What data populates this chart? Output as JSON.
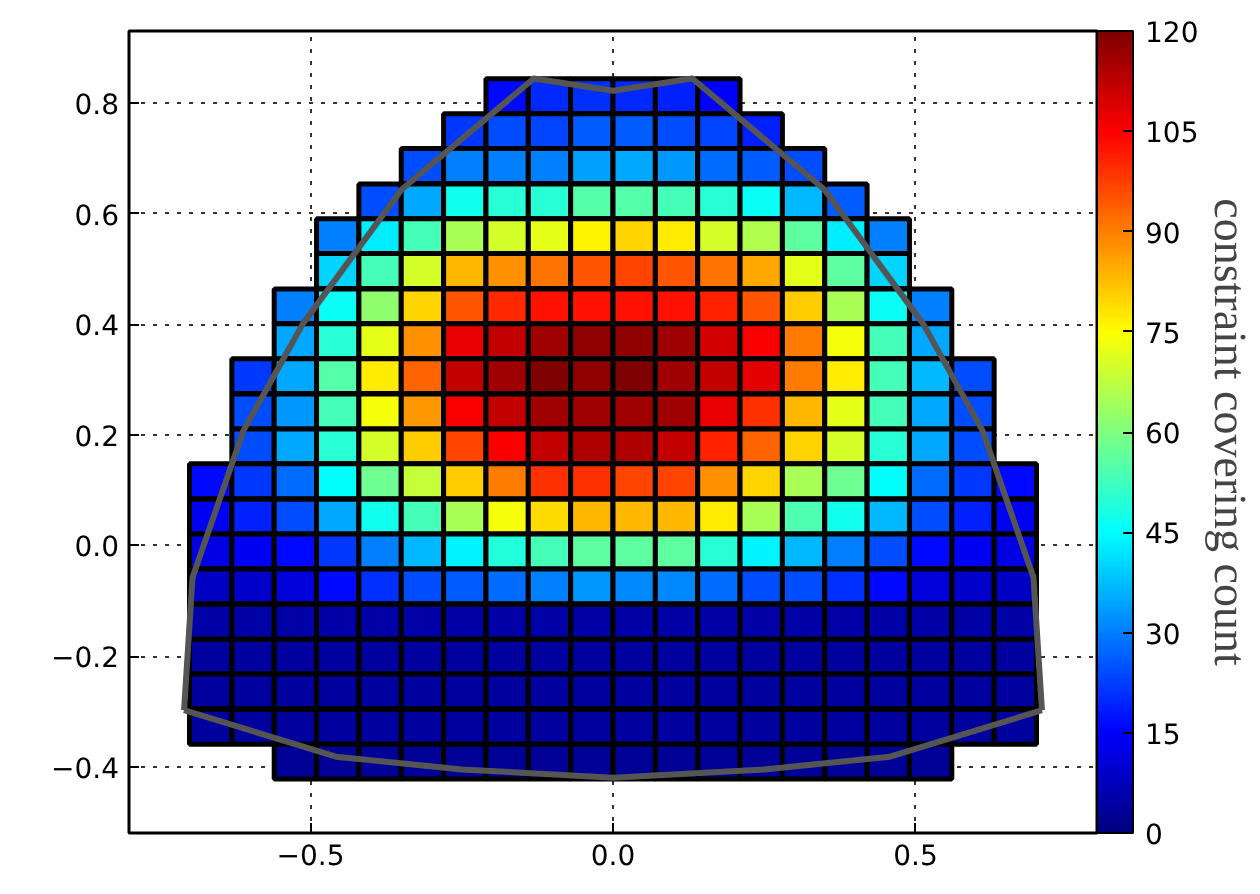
{
  "chart_data": {
    "type": "heatmap",
    "clabel": "constraint covering count",
    "x": [
      -0.665,
      -0.595,
      -0.525,
      -0.455,
      -0.385,
      -0.315,
      -0.245,
      -0.175,
      -0.105,
      -0.035,
      0.035,
      0.105,
      0.175,
      0.245,
      0.315,
      0.385,
      0.455,
      0.525,
      0.595,
      0.665
    ],
    "y": [
      0.812,
      0.749,
      0.686,
      0.622,
      0.559,
      0.496,
      0.432,
      0.369,
      0.306,
      0.242,
      0.179,
      0.116,
      0.052,
      -0.011,
      -0.074,
      -0.138,
      -0.201,
      -0.264,
      -0.328,
      -0.391
    ],
    "cells": [
      [
        null,
        null,
        null,
        null,
        null,
        null,
        null,
        16,
        20,
        21,
        20,
        19,
        15,
        null,
        null,
        null,
        null,
        null,
        null,
        null
      ],
      [
        null,
        null,
        null,
        null,
        null,
        null,
        22,
        24,
        23,
        26,
        26,
        24,
        23,
        19,
        null,
        null,
        null,
        null,
        null,
        null
      ],
      [
        null,
        null,
        null,
        null,
        null,
        24,
        30,
        30,
        30,
        34,
        35,
        33,
        28,
        26,
        24,
        null,
        null,
        null,
        null,
        null
      ],
      [
        null,
        null,
        null,
        null,
        24,
        35,
        47,
        50,
        50,
        55,
        55,
        53,
        50,
        46,
        37,
        26,
        null,
        null,
        null,
        null
      ],
      [
        null,
        null,
        null,
        30,
        43,
        53,
        65,
        70,
        72,
        76,
        80,
        77,
        70,
        66,
        56,
        43,
        30,
        null,
        null,
        null
      ],
      [
        null,
        null,
        null,
        40,
        53,
        70,
        83,
        88,
        91,
        95,
        97,
        95,
        91,
        85,
        72,
        56,
        40,
        null,
        null,
        null
      ],
      [
        null,
        null,
        30,
        46,
        62,
        80,
        95,
        100,
        103,
        103,
        103,
        103,
        101,
        95,
        81,
        65,
        46,
        30,
        null,
        null
      ],
      [
        null,
        null,
        35,
        50,
        72,
        88,
        107,
        112,
        116,
        118,
        118,
        116,
        110,
        105,
        90,
        74,
        53,
        35,
        null,
        null
      ],
      [
        null,
        22,
        35,
        55,
        77,
        93,
        112,
        116,
        120,
        118,
        120,
        116,
        112,
        108,
        90,
        77,
        53,
        37,
        24,
        null
      ],
      [
        null,
        24,
        33,
        53,
        74,
        87,
        105,
        112,
        116,
        116,
        116,
        116,
        107,
        99,
        83,
        72,
        53,
        35,
        24,
        null
      ],
      [
        null,
        24,
        35,
        50,
        70,
        81,
        97,
        105,
        112,
        114,
        114,
        112,
        101,
        93,
        80,
        70,
        50,
        35,
        24,
        null
      ],
      [
        16,
        22,
        28,
        45,
        58,
        68,
        81,
        90,
        99,
        99,
        97,
        97,
        88,
        80,
        65,
        58,
        45,
        28,
        22,
        16
      ],
      [
        14,
        19,
        24,
        35,
        47,
        53,
        65,
        74,
        79,
        83,
        83,
        83,
        77,
        65,
        54,
        47,
        37,
        24,
        19,
        14
      ],
      [
        12,
        14,
        16,
        22,
        30,
        37,
        44,
        49,
        53,
        56,
        56,
        56,
        50,
        44,
        37,
        30,
        24,
        16,
        14,
        12
      ],
      [
        8,
        9,
        11,
        16,
        21,
        24,
        26,
        28,
        30,
        33,
        31,
        31,
        28,
        24,
        24,
        21,
        16,
        11,
        9,
        8
      ],
      [
        5,
        5,
        5,
        5,
        5,
        5,
        5,
        5,
        5,
        5,
        5,
        5,
        5,
        5,
        5,
        5,
        5,
        5,
        5,
        5
      ],
      [
        4,
        4,
        4,
        4,
        4,
        4,
        4,
        4,
        4,
        4,
        4,
        4,
        4,
        4,
        4,
        4,
        4,
        4,
        4,
        4
      ],
      [
        4,
        4,
        4,
        4,
        4,
        4,
        4,
        4,
        4,
        4,
        4,
        4,
        4,
        4,
        4,
        4,
        4,
        4,
        4,
        4
      ],
      [
        4,
        4,
        4,
        4,
        4,
        4,
        4,
        4,
        4,
        4,
        4,
        4,
        4,
        4,
        4,
        4,
        4,
        4,
        4,
        4
      ],
      [
        null,
        null,
        3,
        3,
        3,
        3,
        3,
        3,
        3,
        3,
        3,
        3,
        3,
        3,
        3,
        3,
        3,
        3,
        null,
        null
      ]
    ],
    "clim": [
      0,
      120
    ],
    "cticks": [
      0,
      15,
      30,
      45,
      60,
      75,
      90,
      105,
      120
    ],
    "series": [
      {
        "type": "line",
        "color": "#555555",
        "x": [
          -0.709,
          -0.695,
          -0.611,
          -0.513,
          -0.349,
          -0.131,
          0,
          0.131,
          0.349,
          0.513,
          0.611,
          0.695,
          0.709
        ],
        "values": [
          -0.298,
          -0.058,
          0.207,
          0.4,
          0.644,
          0.844,
          0.822,
          0.844,
          0.644,
          0.4,
          0.207,
          -0.058,
          -0.298
        ]
      },
      {
        "type": "line",
        "color": "#555555",
        "x": [
          -0.709,
          -0.458,
          -0.25,
          0,
          0.25,
          0.458,
          0.709
        ],
        "values": [
          -0.298,
          -0.382,
          -0.405,
          -0.42,
          -0.405,
          -0.382,
          -0.298
        ]
      }
    ],
    "xlim": [
      -0.8,
      0.8
    ],
    "ylim": [
      -0.52,
      0.93
    ],
    "xticks": [
      {
        "value": -0.5,
        "label": "−0.5"
      },
      {
        "value": 0,
        "label": "0.0"
      },
      {
        "value": 0.5,
        "label": "0.5"
      }
    ],
    "yticks": [
      {
        "value": -0.4,
        "label": "−0.4"
      },
      {
        "value": -0.2,
        "label": "−0.2"
      },
      {
        "value": 0,
        "label": "0.0"
      },
      {
        "value": 0.2,
        "label": "0.2"
      },
      {
        "value": 0.4,
        "label": "0.4"
      },
      {
        "value": 0.6,
        "label": "0.6"
      },
      {
        "value": 0.8,
        "label": "0.8"
      }
    ],
    "grid": true
  }
}
